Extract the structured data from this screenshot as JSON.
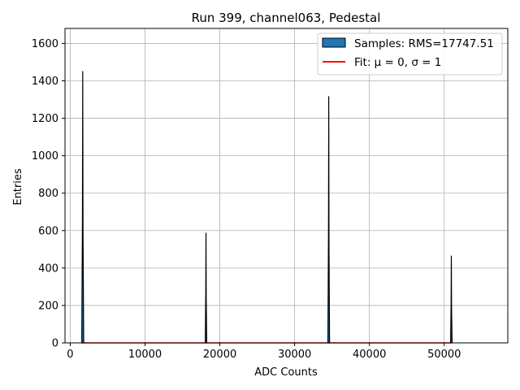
{
  "chart_data": {
    "type": "histogram",
    "title": "Run 399, channel063, Pedestal",
    "xlabel": "ADC Counts",
    "ylabel": "Entries",
    "xlim": [
      -700,
      58500
    ],
    "ylim": [
      0,
      1680
    ],
    "xticks": [
      0,
      10000,
      20000,
      30000,
      40000,
      50000
    ],
    "yticks": [
      0,
      200,
      400,
      600,
      800,
      1000,
      1200,
      1400,
      1600
    ],
    "grid": true,
    "legend_position": "top-right",
    "bar_color": "#1f77b4",
    "bar_edge_color": "#000000",
    "fit_color": "#ff0000",
    "peaks": [
      {
        "x": 1670,
        "entries": 1452,
        "width": 260
      },
      {
        "x": 18150,
        "entries": 588,
        "width": 200
      },
      {
        "x": 34560,
        "entries": 1318,
        "width": 220
      },
      {
        "x": 50950,
        "entries": 466,
        "width": 200
      }
    ],
    "fit_line": {
      "x": [
        1500,
        51000
      ],
      "y": [
        0,
        0
      ]
    },
    "legend": [
      {
        "kind": "patch",
        "label": "Samples: RMS=17747.51"
      },
      {
        "kind": "line",
        "label": "Fit: μ = 0, σ = 1"
      }
    ]
  }
}
